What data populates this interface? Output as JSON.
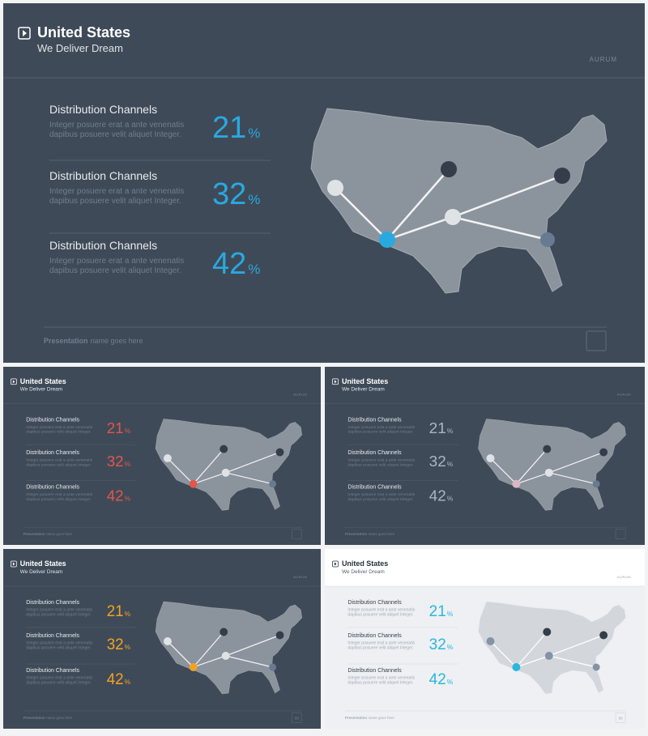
{
  "slides": [
    {
      "theme": "dark",
      "accent": "#29a9e0",
      "hub_color": "#29a9e0",
      "title": "United States",
      "subtitle": "We Deliver Dream",
      "brand": "AURUM",
      "items": [
        {
          "label": "Distribution Channels",
          "description": [
            "Integer posuere erat a ante venenatis",
            "dapibus posuere velit aliquet Integer."
          ],
          "value": 21,
          "unit": "%"
        },
        {
          "label": "Distribution Channels",
          "description": [
            "Integer posuere erat a ante venenatis",
            "dapibus posuere velit aliquet Integer."
          ],
          "value": 32,
          "unit": "%"
        },
        {
          "label": "Distribution Channels",
          "description": [
            "Integer posuere erat a ante venenatis",
            "dapibus posuere velit aliquet Integer."
          ],
          "value": 42,
          "unit": "%"
        }
      ],
      "footer_bold": "Presentation",
      "footer_text": "name goes here"
    },
    {
      "theme": "dark",
      "accent": "#e2574c",
      "hub_color": "#e2574c",
      "title": "United States",
      "subtitle": "We Deliver Dream",
      "brand": "AURUM",
      "items": [
        {
          "label": "Distribution Channels",
          "description": [
            "Integer posuere erat a ante venenatis",
            "dapibus posuere velit aliquet Integer."
          ],
          "value": 21,
          "unit": "%"
        },
        {
          "label": "Distribution Channels",
          "description": [
            "Integer posuere erat a ante venenatis",
            "dapibus posuere velit aliquet Integer."
          ],
          "value": 32,
          "unit": "%"
        },
        {
          "label": "Distribution Channels",
          "description": [
            "Integer posuere erat a ante venenatis",
            "dapibus posuere velit aliquet Integer."
          ],
          "value": 42,
          "unit": "%"
        }
      ],
      "footer_bold": "Presentation",
      "footer_text": "name goes here"
    },
    {
      "theme": "dark",
      "accent": "#aab4c6",
      "hub_color": "#d9b8c4",
      "title": "United States",
      "subtitle": "We Deliver Dream",
      "brand": "AURUM",
      "items": [
        {
          "label": "Distribution Channels",
          "description": [
            "Integer posuere erat a ante venenatis",
            "dapibus posuere velit aliquet Integer."
          ],
          "value": 21,
          "unit": "%"
        },
        {
          "label": "Distribution Channels",
          "description": [
            "Integer posuere erat a ante venenatis",
            "dapibus posuere velit aliquet Integer."
          ],
          "value": 32,
          "unit": "%"
        },
        {
          "label": "Distribution Channels",
          "description": [
            "Integer posuere erat a ante venenatis",
            "dapibus posuere velit aliquet Integer."
          ],
          "value": 42,
          "unit": "%"
        }
      ],
      "footer_bold": "Presentation",
      "footer_text": "name goes here"
    },
    {
      "theme": "dark",
      "accent": "#f0a322",
      "hub_color": "#f0a322",
      "title": "United States",
      "subtitle": "We Deliver Dream",
      "brand": "AURUM",
      "items": [
        {
          "label": "Distribution Channels",
          "description": [
            "Integer posuere erat a ante venenatis",
            "dapibus posuere velit aliquet Integer."
          ],
          "value": 21,
          "unit": "%"
        },
        {
          "label": "Distribution Channels",
          "description": [
            "Integer posuere erat a ante venenatis",
            "dapibus posuere velit aliquet Integer."
          ],
          "value": 32,
          "unit": "%"
        },
        {
          "label": "Distribution Channels",
          "description": [
            "Integer posuere erat a ante venenatis",
            "dapibus posuere velit aliquet Integer."
          ],
          "value": 42,
          "unit": "%"
        }
      ],
      "footer_bold": "Presentation",
      "footer_text": "name goes here",
      "page_number": "99"
    },
    {
      "theme": "light",
      "accent": "#29b6e0",
      "hub_color": "#29b6e0",
      "title": "United States",
      "subtitle": "We Deliver Dream",
      "brand": "AURUM",
      "items": [
        {
          "label": "Distribution Channels",
          "description": [
            "Integer posuere erat a ante venenatis",
            "dapibus posuere velit aliquet Integer."
          ],
          "value": 21,
          "unit": "%"
        },
        {
          "label": "Distribution Channels",
          "description": [
            "Integer posuere erat a ante venenatis",
            "dapibus posuere velit aliquet Integer."
          ],
          "value": 32,
          "unit": "%"
        },
        {
          "label": "Distribution Channels",
          "description": [
            "Integer posuere erat a ante venenatis",
            "dapibus posuere velit aliquet Integer."
          ],
          "value": 42,
          "unit": "%"
        }
      ],
      "footer_bold": "Presentation",
      "footer_text": "name goes here",
      "page_number": "99"
    }
  ]
}
